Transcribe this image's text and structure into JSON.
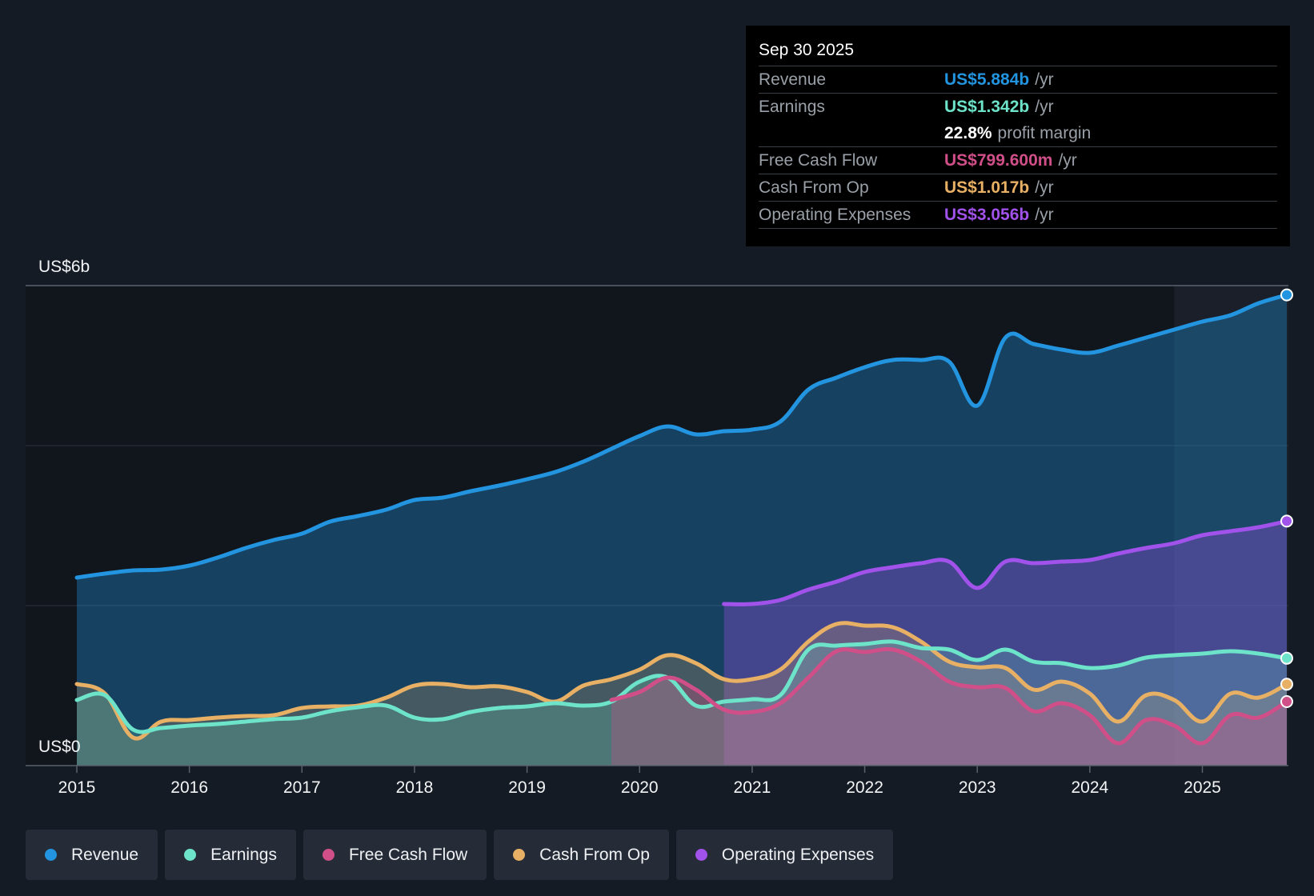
{
  "tooltip": {
    "date": "Sep 30 2025",
    "rows": [
      {
        "label": "Revenue",
        "value": "US$5.884b",
        "unit": "/yr",
        "color": "#2394df"
      },
      {
        "label": "Earnings",
        "value": "US$1.342b",
        "unit": "/yr",
        "color": "#6de3c9"
      },
      {
        "label": "",
        "value": "22.8%",
        "unit": "profit margin",
        "color": "#ffffff"
      },
      {
        "label": "Free Cash Flow",
        "value": "US$799.600m",
        "unit": "/yr",
        "color": "#d04f88"
      },
      {
        "label": "Cash From Op",
        "value": "US$1.017b",
        "unit": "/yr",
        "color": "#e8b064"
      },
      {
        "label": "Operating Expenses",
        "value": "US$3.056b",
        "unit": "/yr",
        "color": "#a152ea"
      }
    ]
  },
  "legend": [
    {
      "label": "Revenue",
      "color": "#2394df"
    },
    {
      "label": "Earnings",
      "color": "#6de3c9"
    },
    {
      "label": "Free Cash Flow",
      "color": "#d04f88"
    },
    {
      "label": "Cash From Op",
      "color": "#e8b064"
    },
    {
      "label": "Operating Expenses",
      "color": "#a152ea"
    }
  ],
  "chart_data": {
    "type": "area",
    "title": "",
    "xlabel": "",
    "ylabel": "",
    "y_top_label": "US$6b",
    "y_bottom_label": "US$0",
    "ylim": [
      0,
      6
    ],
    "xlim": [
      2015,
      2025.75
    ],
    "x_ticks": [
      "2015",
      "2016",
      "2017",
      "2018",
      "2019",
      "2020",
      "2021",
      "2022",
      "2023",
      "2024",
      "2025"
    ],
    "forecast_start": 2024.75,
    "series": [
      {
        "name": "Revenue",
        "color": "#2394df",
        "x": [
          2015,
          2015.25,
          2015.5,
          2015.75,
          2016,
          2016.25,
          2016.5,
          2016.75,
          2017,
          2017.25,
          2017.5,
          2017.75,
          2018,
          2018.25,
          2018.5,
          2018.75,
          2019,
          2019.25,
          2019.5,
          2019.75,
          2020,
          2020.25,
          2020.5,
          2020.75,
          2021,
          2021.25,
          2021.5,
          2021.75,
          2022,
          2022.25,
          2022.5,
          2022.75,
          2023,
          2023.25,
          2023.5,
          2023.75,
          2024,
          2024.25,
          2024.5,
          2024.75,
          2025,
          2025.25,
          2025.5,
          2025.75
        ],
        "values": [
          2.35,
          2.4,
          2.44,
          2.45,
          2.5,
          2.6,
          2.72,
          2.82,
          2.9,
          3.05,
          3.12,
          3.2,
          3.32,
          3.35,
          3.43,
          3.5,
          3.58,
          3.67,
          3.8,
          3.96,
          4.12,
          4.24,
          4.14,
          4.18,
          4.2,
          4.3,
          4.7,
          4.85,
          4.98,
          5.07,
          5.07,
          5.05,
          4.5,
          5.35,
          5.27,
          5.2,
          5.16,
          5.25,
          5.35,
          5.45,
          5.55,
          5.63,
          5.78,
          5.884
        ]
      },
      {
        "name": "Earnings",
        "color": "#6de3c9",
        "x": [
          2015,
          2015.25,
          2015.5,
          2015.75,
          2016,
          2016.25,
          2016.5,
          2016.75,
          2017,
          2017.25,
          2017.5,
          2017.75,
          2018,
          2018.25,
          2018.5,
          2018.75,
          2019,
          2019.25,
          2019.5,
          2019.75,
          2020,
          2020.25,
          2020.5,
          2020.75,
          2021,
          2021.25,
          2021.5,
          2021.75,
          2022,
          2022.25,
          2022.5,
          2022.75,
          2023,
          2023.25,
          2023.5,
          2023.75,
          2024,
          2024.25,
          2024.5,
          2024.75,
          2025,
          2025.25,
          2025.5,
          2025.75
        ],
        "values": [
          0.82,
          0.88,
          0.45,
          0.47,
          0.5,
          0.52,
          0.55,
          0.58,
          0.6,
          0.68,
          0.73,
          0.75,
          0.6,
          0.58,
          0.67,
          0.72,
          0.74,
          0.78,
          0.75,
          0.8,
          1.05,
          1.1,
          0.75,
          0.8,
          0.83,
          0.88,
          1.45,
          1.5,
          1.52,
          1.55,
          1.47,
          1.45,
          1.32,
          1.45,
          1.3,
          1.28,
          1.22,
          1.25,
          1.35,
          1.38,
          1.4,
          1.43,
          1.4,
          1.342
        ]
      },
      {
        "name": "Free Cash Flow",
        "color": "#d04f88",
        "x": [
          2019.75,
          2020,
          2020.25,
          2020.5,
          2020.75,
          2021,
          2021.25,
          2021.5,
          2021.75,
          2022,
          2022.25,
          2022.5,
          2022.75,
          2023,
          2023.25,
          2023.5,
          2023.75,
          2024,
          2024.25,
          2024.5,
          2024.75,
          2025,
          2025.25,
          2025.5,
          2025.75
        ],
        "values": [
          0.82,
          0.92,
          1.1,
          0.95,
          0.7,
          0.67,
          0.78,
          1.1,
          1.43,
          1.42,
          1.45,
          1.3,
          1.05,
          0.98,
          0.97,
          0.68,
          0.78,
          0.63,
          0.28,
          0.57,
          0.5,
          0.28,
          0.63,
          0.6,
          0.8
        ]
      },
      {
        "name": "Cash From Op",
        "color": "#e8b064",
        "x": [
          2015,
          2015.25,
          2015.5,
          2015.75,
          2016,
          2016.25,
          2016.5,
          2016.75,
          2017,
          2017.25,
          2017.5,
          2017.75,
          2018,
          2018.25,
          2018.5,
          2018.75,
          2019,
          2019.25,
          2019.5,
          2019.75,
          2020,
          2020.25,
          2020.5,
          2020.75,
          2021,
          2021.25,
          2021.5,
          2021.75,
          2022,
          2022.25,
          2022.5,
          2022.75,
          2023,
          2023.25,
          2023.5,
          2023.75,
          2024,
          2024.25,
          2024.5,
          2024.75,
          2025,
          2025.25,
          2025.5,
          2025.75
        ],
        "values": [
          1.02,
          0.9,
          0.35,
          0.55,
          0.57,
          0.6,
          0.62,
          0.63,
          0.72,
          0.74,
          0.75,
          0.85,
          1.0,
          1.02,
          0.98,
          0.99,
          0.92,
          0.8,
          1.0,
          1.08,
          1.2,
          1.38,
          1.28,
          1.08,
          1.08,
          1.2,
          1.55,
          1.77,
          1.75,
          1.73,
          1.55,
          1.3,
          1.23,
          1.22,
          0.95,
          1.05,
          0.9,
          0.55,
          0.88,
          0.82,
          0.55,
          0.9,
          0.85,
          1.017
        ]
      },
      {
        "name": "Operating Expenses",
        "color": "#a152ea",
        "x": [
          2020.75,
          2021,
          2021.25,
          2021.5,
          2021.75,
          2022,
          2022.25,
          2022.5,
          2022.75,
          2023,
          2023.25,
          2023.5,
          2023.75,
          2024,
          2024.25,
          2024.5,
          2024.75,
          2025,
          2025.25,
          2025.5,
          2025.75
        ],
        "values": [
          2.02,
          2.02,
          2.07,
          2.2,
          2.3,
          2.42,
          2.48,
          2.53,
          2.55,
          2.22,
          2.55,
          2.53,
          2.55,
          2.57,
          2.65,
          2.72,
          2.78,
          2.88,
          2.93,
          2.98,
          3.056
        ]
      }
    ]
  }
}
